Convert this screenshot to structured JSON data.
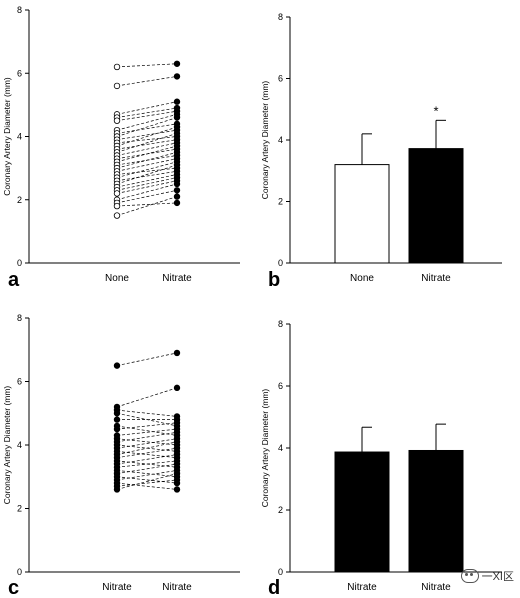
{
  "chart_data": [
    {
      "panel": "a",
      "type": "scatter",
      "style": "paired-lines",
      "ylabel": "Coronary Artery Diameter (mm)",
      "ylim": [
        0,
        8
      ],
      "yticks": [
        "0",
        "2",
        "4",
        "6",
        "8"
      ],
      "categories": [
        "None",
        "Nitrate"
      ],
      "markers": [
        "open-circle",
        "filled-circle"
      ],
      "pairs": [
        [
          6.2,
          6.3
        ],
        [
          5.6,
          5.9
        ],
        [
          4.7,
          5.1
        ],
        [
          4.6,
          4.9
        ],
        [
          4.5,
          4.8
        ],
        [
          4.2,
          4.7
        ],
        [
          4.1,
          4.4
        ],
        [
          4.0,
          4.6
        ],
        [
          3.9,
          4.2
        ],
        [
          3.8,
          4.0
        ],
        [
          3.7,
          4.3
        ],
        [
          3.6,
          3.9
        ],
        [
          3.5,
          4.1
        ],
        [
          3.4,
          3.8
        ],
        [
          3.3,
          3.6
        ],
        [
          3.2,
          3.7
        ],
        [
          3.1,
          3.4
        ],
        [
          3.0,
          3.5
        ],
        [
          2.9,
          3.3
        ],
        [
          2.8,
          3.0
        ],
        [
          2.7,
          3.2
        ],
        [
          2.6,
          2.9
        ],
        [
          2.5,
          3.1
        ],
        [
          2.4,
          2.8
        ],
        [
          2.3,
          2.7
        ],
        [
          2.2,
          2.6
        ],
        [
          2.0,
          2.5
        ],
        [
          1.9,
          2.3
        ],
        [
          1.8,
          1.9
        ],
        [
          1.5,
          2.1
        ]
      ]
    },
    {
      "panel": "b",
      "type": "bar",
      "ylabel": "Coronary Artery Diameter (mm)",
      "ylim": [
        0,
        8
      ],
      "yticks": [
        "0",
        "2",
        "4",
        "6",
        "8"
      ],
      "categories": [
        "None",
        "Nitrate"
      ],
      "values": [
        3.2,
        3.72
      ],
      "errors": [
        1.0,
        0.92
      ],
      "fills": [
        "#ffffff",
        "#000000"
      ],
      "annotations": [
        {
          "category": "Nitrate",
          "text": "*"
        }
      ]
    },
    {
      "panel": "c",
      "type": "scatter",
      "style": "paired-lines",
      "ylabel": "Coronary Artery Diameter (mm)",
      "ylim": [
        0,
        8
      ],
      "yticks": [
        "0",
        "2",
        "4",
        "6",
        "8"
      ],
      "categories": [
        "Nitrate",
        "Nitrate"
      ],
      "markers": [
        "filled-circle",
        "filled-circle"
      ],
      "pairs": [
        [
          6.5,
          6.9
        ],
        [
          5.2,
          5.8
        ],
        [
          5.1,
          4.9
        ],
        [
          5.0,
          4.6
        ],
        [
          4.8,
          4.8
        ],
        [
          4.6,
          4.3
        ],
        [
          4.5,
          4.7
        ],
        [
          4.3,
          4.5
        ],
        [
          4.2,
          4.0
        ],
        [
          4.1,
          4.4
        ],
        [
          4.0,
          3.8
        ],
        [
          3.9,
          4.2
        ],
        [
          3.8,
          3.6
        ],
        [
          3.7,
          4.1
        ],
        [
          3.6,
          3.9
        ],
        [
          3.5,
          3.3
        ],
        [
          3.4,
          3.7
        ],
        [
          3.3,
          3.5
        ],
        [
          3.2,
          3.0
        ],
        [
          3.1,
          3.4
        ],
        [
          3.0,
          2.8
        ],
        [
          2.9,
          3.2
        ],
        [
          2.8,
          2.6
        ],
        [
          2.7,
          2.9
        ],
        [
          2.6,
          3.1
        ]
      ]
    },
    {
      "panel": "d",
      "type": "bar",
      "ylabel": "Coronary Artery Diameter (mm)",
      "ylim": [
        0,
        8
      ],
      "yticks": [
        "0",
        "2",
        "4",
        "6",
        "8"
      ],
      "categories": [
        "Nitrate",
        "Nitrate"
      ],
      "values": [
        3.87,
        3.92
      ],
      "errors": [
        0.8,
        0.85
      ],
      "fills": [
        "#000000",
        "#000000"
      ],
      "annotations": []
    }
  ],
  "watermark": {
    "text": "一XI区",
    "icon": "wechat-icon"
  }
}
